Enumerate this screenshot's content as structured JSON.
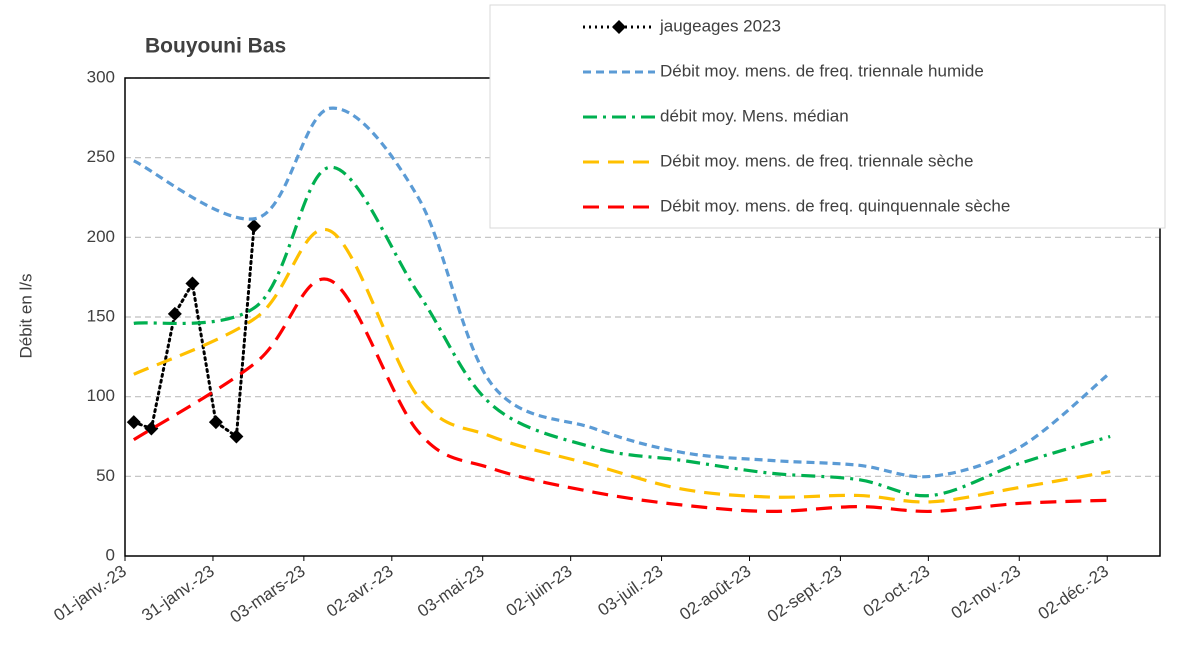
{
  "chart_data": {
    "type": "line",
    "title": "Bouyouni Bas",
    "ylabel": "Débit en l/s",
    "xlim": [
      "2023-01-01",
      "2023-12-20"
    ],
    "xticks": [
      {
        "value": "2023-01-01",
        "label": "01-janv.-23"
      },
      {
        "value": "2023-01-31",
        "label": "31-janv.-23"
      },
      {
        "value": "2023-03-03",
        "label": "03-mars-23"
      },
      {
        "value": "2023-04-02",
        "label": "02-avr.-23"
      },
      {
        "value": "2023-05-03",
        "label": "03-mai-23"
      },
      {
        "value": "2023-06-02",
        "label": "02-juin-23"
      },
      {
        "value": "2023-07-03",
        "label": "03-juil.-23"
      },
      {
        "value": "2023-08-02",
        "label": "02-août-23"
      },
      {
        "value": "2023-09-02",
        "label": "02-sept.-23"
      },
      {
        "value": "2023-10-02",
        "label": "02-oct.-23"
      },
      {
        "value": "2023-11-02",
        "label": "02-nov.-23"
      },
      {
        "value": "2023-12-02",
        "label": "02-déc.-23"
      }
    ],
    "ylim": [
      0,
      300
    ],
    "yticks": [
      0,
      50,
      100,
      150,
      200,
      250,
      300
    ],
    "grid": true,
    "series": [
      {
        "name": "jaugeages 2023",
        "color": "#000000",
        "style": "dotted-marker",
        "x": [
          "2023-01-04",
          "2023-01-10",
          "2023-01-18",
          "2023-01-24",
          "2023-02-01",
          "2023-02-08",
          "2023-02-14"
        ],
        "values": [
          84,
          80,
          152,
          171,
          84,
          75,
          207
        ]
      },
      {
        "name": "Débit moy. mens. de freq. triennale humide",
        "color": "#5b9bd5",
        "style": "dashed",
        "x": [
          "2023-01-04",
          "2023-02-15",
          "2023-03-12",
          "2023-04-11",
          "2023-05-06",
          "2023-06-10",
          "2023-07-10",
          "2023-08-09",
          "2023-09-08",
          "2023-10-03",
          "2023-11-02",
          "2023-12-03"
        ],
        "values": [
          248,
          212,
          281,
          225,
          108,
          80,
          65,
          60,
          57,
          50,
          68,
          115
        ]
      },
      {
        "name": "débit moy. Mens. médian",
        "color": "#00b050",
        "style": "dashdot",
        "x": [
          "2023-01-04",
          "2023-02-15",
          "2023-03-12",
          "2023-04-11",
          "2023-05-06",
          "2023-06-10",
          "2023-07-10",
          "2023-08-09",
          "2023-09-08",
          "2023-10-03",
          "2023-11-02",
          "2023-12-03"
        ],
        "values": [
          146,
          157,
          244,
          165,
          95,
          68,
          60,
          52,
          48,
          38,
          58,
          75
        ]
      },
      {
        "name": "Débit moy. mens. de freq. triennale sèche",
        "color": "#ffc000",
        "style": "longdash",
        "x": [
          "2023-01-04",
          "2023-02-15",
          "2023-03-12",
          "2023-04-11",
          "2023-05-06",
          "2023-06-10",
          "2023-07-10",
          "2023-08-09",
          "2023-09-08",
          "2023-10-03",
          "2023-11-02",
          "2023-12-03"
        ],
        "values": [
          114,
          150,
          204,
          100,
          75,
          57,
          42,
          37,
          38,
          34,
          43,
          53
        ]
      },
      {
        "name": "Débit moy. mens. de freq. quinquennale sèche",
        "color": "#ff0000",
        "style": "longdash",
        "x": [
          "2023-01-04",
          "2023-02-15",
          "2023-03-12",
          "2023-04-11",
          "2023-05-06",
          "2023-06-10",
          "2023-07-10",
          "2023-08-09",
          "2023-09-08",
          "2023-10-03",
          "2023-11-02",
          "2023-12-03"
        ],
        "values": [
          73,
          122,
          173,
          78,
          55,
          40,
          32,
          28,
          31,
          28,
          33,
          35
        ]
      }
    ]
  }
}
